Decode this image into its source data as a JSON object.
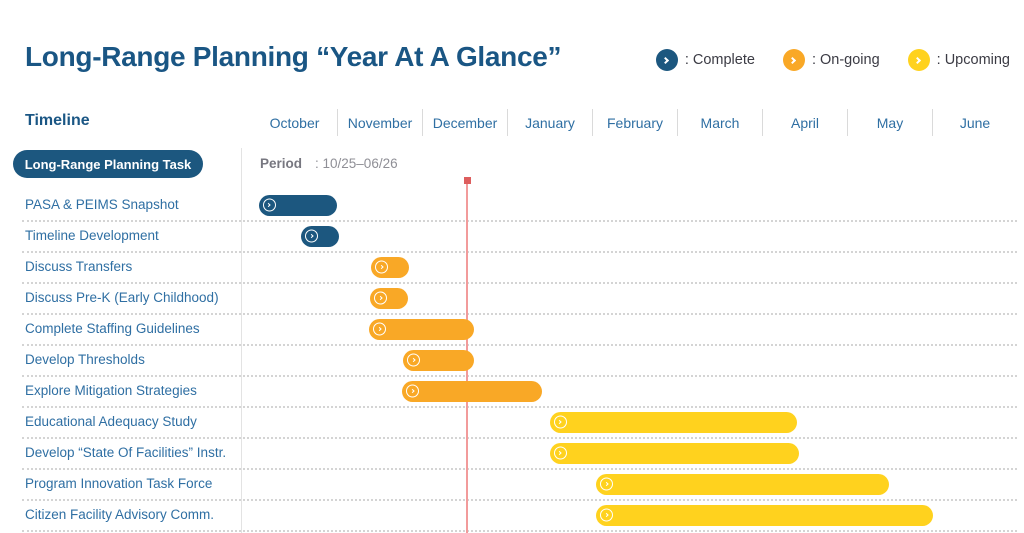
{
  "header": {
    "title": "Long-Range Planning “Year At A Glance”"
  },
  "legend": {
    "items": [
      {
        "label": ": Complete",
        "status": "complete"
      },
      {
        "label": ": On-going",
        "status": "ongoing"
      },
      {
        "label": ": Upcoming",
        "status": "upcoming"
      }
    ]
  },
  "timeline": {
    "heading": "Timeline",
    "pill_label": "Long-Range Planning Task",
    "period_label": "Period",
    "period_value": ": 10/25–06/26"
  },
  "icons": {
    "status_icon": "chevron-right-icon"
  },
  "colors": {
    "complete": "#1C577F",
    "ongoing": "#F9A826",
    "upcoming": "#FFD21E",
    "title_blue": "#1A5684",
    "label_blue": "#2F6FA3",
    "legend_text": "#3B3B44",
    "period_text": "#8A8A8A",
    "marker_line": "#F29B9B",
    "marker_handle": "#DD5E5E",
    "grid": "#D9D9D9"
  },
  "chart_data": {
    "type": "gantt",
    "title": "Long-Range Planning “Year At A Glance”",
    "x_axis": {
      "unit": "month",
      "labels": [
        "October",
        "November",
        "December",
        "January",
        "February",
        "March",
        "April",
        "May",
        "June"
      ],
      "period": "10/25–06/26"
    },
    "marker": {
      "name": "current-date-line",
      "position_months": 2.535,
      "approx_date": "mid-December"
    },
    "tasks": [
      {
        "name": "PASA & PEIMS Snapshot",
        "status": "complete",
        "start": 0.08,
        "end": 1.0
      },
      {
        "name": "Timeline Development",
        "status": "complete",
        "start": 0.58,
        "end": 1.02
      },
      {
        "name": "Discuss Transfers",
        "status": "ongoing",
        "start": 1.4,
        "end": 1.85
      },
      {
        "name": "Discuss Pre-K (Early Childhood)",
        "status": "ongoing",
        "start": 1.39,
        "end": 1.84
      },
      {
        "name": "Complete Staffing Guidelines",
        "status": "ongoing",
        "start": 1.38,
        "end": 2.61
      },
      {
        "name": "Develop Thresholds",
        "status": "ongoing",
        "start": 1.78,
        "end": 2.61
      },
      {
        "name": "Explore Mitigation Strategies",
        "status": "ongoing",
        "start": 1.77,
        "end": 3.41
      },
      {
        "name": "Educational Adequacy Study",
        "status": "upcoming",
        "start": 3.5,
        "end": 6.41
      },
      {
        "name": "Develop “State Of Facilities” Instr.",
        "status": "upcoming",
        "start": 3.5,
        "end": 6.43
      },
      {
        "name": "Program Innovation Task Force",
        "status": "upcoming",
        "start": 4.05,
        "end": 7.49
      },
      {
        "name": "Citizen Facility Advisory Comm.",
        "status": "upcoming",
        "start": 4.05,
        "end": 8.01
      }
    ]
  }
}
